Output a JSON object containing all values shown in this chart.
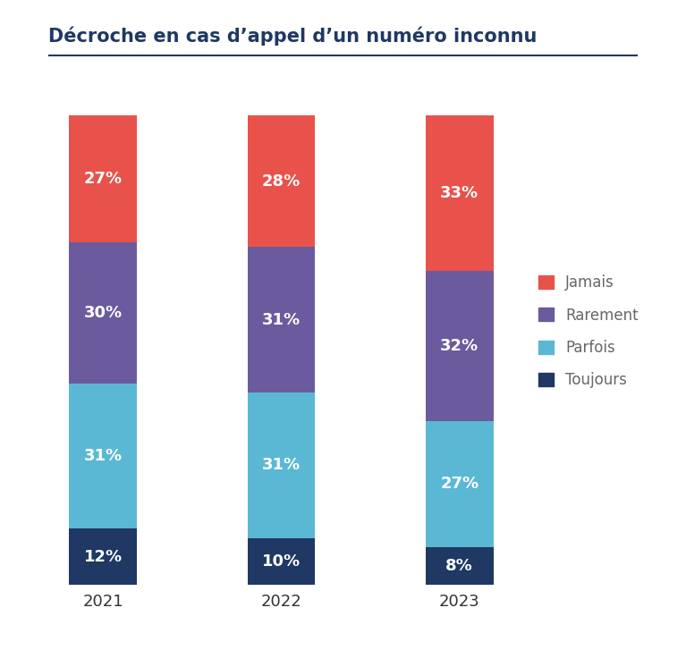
{
  "title": "Décroche en cas d’appel d’un numéro inconnu",
  "categories": [
    "2021",
    "2022",
    "2023"
  ],
  "series": {
    "Toujours": [
      12,
      10,
      8
    ],
    "Parfois": [
      31,
      31,
      27
    ],
    "Rarement": [
      30,
      31,
      32
    ],
    "Jamais": [
      27,
      28,
      33
    ]
  },
  "colors": {
    "Toujours": "#1f3864",
    "Parfois": "#5bb8d4",
    "Rarement": "#6b5b9e",
    "Jamais": "#e8524a"
  },
  "label_colors": {
    "Toujours": "#ffffff",
    "Parfois": "#ffffff",
    "Rarement": "#ffffff",
    "Jamais": "#ffffff"
  },
  "bar_width": 0.38,
  "figsize": [
    7.67,
    7.27
  ],
  "dpi": 100,
  "ylim": [
    0,
    108
  ],
  "title_fontsize": 15,
  "label_fontsize": 13,
  "tick_fontsize": 13,
  "legend_fontsize": 12,
  "background_color": "#ffffff",
  "grid_color": "#d0d0d0",
  "title_color": "#1f3864",
  "tick_color": "#333333",
  "legend_text_color": "#666666"
}
